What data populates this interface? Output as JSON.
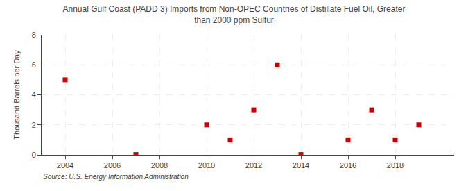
{
  "chart_data": {
    "type": "scatter",
    "title": "Annual Gulf Coast (PADD 3) Imports from Non-OPEC Countries of Distillate Fuel Oil, Greater\nthan 2000 ppm Sulfur",
    "ylabel": "Thousand Barrels per Day",
    "annotations": [
      "Source: U.S. Energy Information Administration"
    ],
    "x": [
      2004,
      2007,
      2010,
      2011,
      2012,
      2013,
      2014,
      2016,
      2017,
      2018,
      2019
    ],
    "values": [
      5,
      0.02,
      2,
      1,
      3,
      6,
      0.02,
      1,
      3,
      1,
      2
    ],
    "color": "#cc0000",
    "marker": "square",
    "xlim": [
      2003,
      2020.5
    ],
    "ylim": [
      0,
      8
    ],
    "xticks": [
      2004,
      2006,
      2008,
      2010,
      2012,
      2014,
      2016,
      2018
    ],
    "yticks": [
      0,
      2,
      4,
      6,
      8
    ],
    "grid": true
  }
}
